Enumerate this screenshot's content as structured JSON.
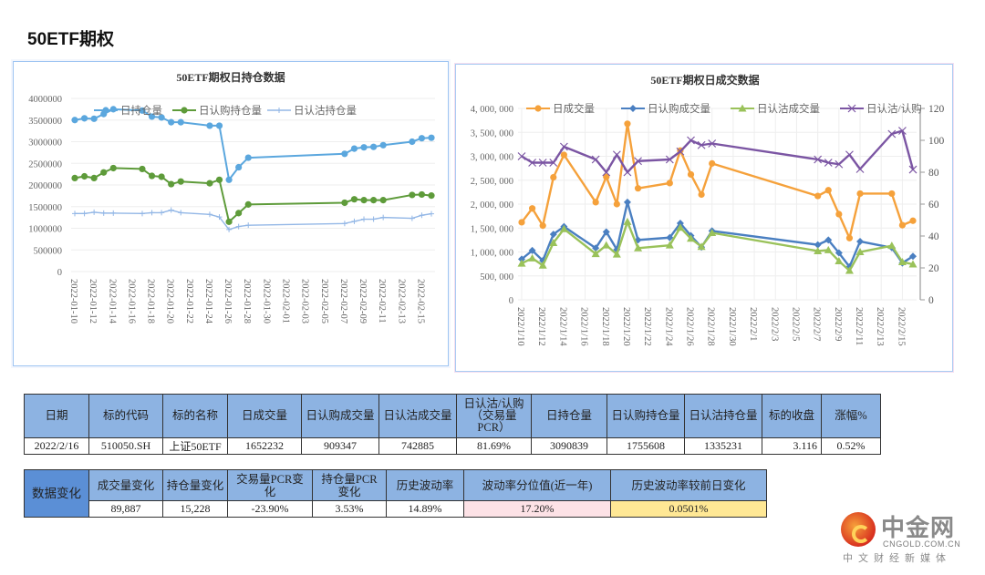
{
  "page": {
    "title": "50ETF期权"
  },
  "chart_data": [
    {
      "type": "line",
      "title": "50ETF期权日持仓数据",
      "xlabel": "",
      "ylabel": "",
      "ylim": [
        0,
        4000000
      ],
      "yticks": [
        "4000000",
        "3500000",
        "3000000",
        "2500000",
        "2000000",
        "1500000",
        "1000000",
        "500000",
        "0"
      ],
      "ytick_values": [
        4000000,
        3500000,
        3000000,
        2500000,
        2000000,
        1500000,
        1000000,
        500000,
        0
      ],
      "xlim": [
        "2022-01-10",
        "2022-02-16"
      ],
      "xtick_labels": [
        "2022-01-10",
        "2022-01-12",
        "2022-01-14",
        "2022-01-16",
        "2022-01-18",
        "2022-01-20",
        "2022-01-22",
        "2022-01-24",
        "2022-01-26",
        "2022-01-28",
        "2022-01-30",
        "2022-02-01",
        "2022-02-03",
        "2022-02-05",
        "2022-02-07",
        "2022-02-09",
        "2022-02-11",
        "2022-02-13",
        "2022-02-15"
      ],
      "grid": true,
      "legend": "top-center",
      "x": [
        "2022-01-10",
        "2022-01-11",
        "2022-01-12",
        "2022-01-13",
        "2022-01-14",
        "2022-01-17",
        "2022-01-18",
        "2022-01-19",
        "2022-01-20",
        "2022-01-21",
        "2022-01-24",
        "2022-01-25",
        "2022-01-26",
        "2022-01-27",
        "2022-01-28",
        "2022-02-07",
        "2022-02-08",
        "2022-02-09",
        "2022-02-10",
        "2022-02-11",
        "2022-02-14",
        "2022-02-15",
        "2022-02-16"
      ],
      "series": [
        {
          "name": "日持仓量",
          "color": "#5ba7de",
          "marker": "circle",
          "values": [
            3500000,
            3540000,
            3530000,
            3640000,
            3750000,
            3720000,
            3580000,
            3560000,
            3450000,
            3450000,
            3370000,
            3370000,
            2120000,
            2410000,
            2630000,
            2720000,
            2840000,
            2870000,
            2880000,
            2920000,
            3000000,
            3080000,
            3090839
          ]
        },
        {
          "name": "日认购持仓量",
          "color": "#5e9b3a",
          "marker": "circle",
          "values": [
            2160000,
            2200000,
            2160000,
            2290000,
            2390000,
            2370000,
            2210000,
            2190000,
            2020000,
            2080000,
            2040000,
            2120000,
            1150000,
            1350000,
            1550000,
            1590000,
            1670000,
            1650000,
            1650000,
            1650000,
            1770000,
            1780000,
            1755608
          ]
        },
        {
          "name": "日认沽持仓量",
          "color": "#93b7e6",
          "marker": "plus",
          "values": [
            1340000,
            1340000,
            1370000,
            1350000,
            1350000,
            1340000,
            1360000,
            1360000,
            1420000,
            1360000,
            1320000,
            1260000,
            970000,
            1040000,
            1070000,
            1110000,
            1160000,
            1210000,
            1210000,
            1250000,
            1230000,
            1300000,
            1335231
          ]
        }
      ]
    },
    {
      "type": "line",
      "title": "50ETF期权日成交数据",
      "xlabel": "",
      "ylabel": "",
      "y2label": "",
      "ylim": [
        0,
        4000000
      ],
      "y2lim": [
        0,
        120
      ],
      "yticks": [
        "4, 000, 000",
        "3, 500, 000",
        "3, 000, 000",
        "2, 500, 000",
        "2, 000, 000",
        "1, 500, 000",
        "1, 000, 000",
        "500, 000",
        "0"
      ],
      "ytick_values": [
        4000000,
        3500000,
        3000000,
        2500000,
        2000000,
        1500000,
        1000000,
        500000,
        0
      ],
      "y2ticks": [
        "120",
        "100",
        "80",
        "60",
        "40",
        "20",
        "0"
      ],
      "y2tick_values": [
        120,
        100,
        80,
        60,
        40,
        20,
        0
      ],
      "xlim": [
        "2022-01-10",
        "2022-02-16"
      ],
      "xtick_labels": [
        "2022/1/10",
        "2022/1/12",
        "2022/1/14",
        "2022/1/16",
        "2022/1/18",
        "2022/1/20",
        "2022/1/22",
        "2022/1/24",
        "2022/1/26",
        "2022/1/28",
        "2022/1/30",
        "2022/2/1",
        "2022/2/3",
        "2022/2/5",
        "2022/2/7",
        "2022/2/9",
        "2022/2/11",
        "2022/2/13",
        "2022/2/15"
      ],
      "grid": true,
      "legend": "top",
      "x": [
        "2022-01-10",
        "2022-01-11",
        "2022-01-12",
        "2022-01-13",
        "2022-01-14",
        "2022-01-17",
        "2022-01-18",
        "2022-01-19",
        "2022-01-20",
        "2022-01-21",
        "2022-01-24",
        "2022-01-25",
        "2022-01-26",
        "2022-01-27",
        "2022-01-28",
        "2022-02-07",
        "2022-02-08",
        "2022-02-09",
        "2022-02-10",
        "2022-02-11",
        "2022-02-14",
        "2022-02-15",
        "2022-02-16"
      ],
      "series": [
        {
          "name": "日成交量",
          "axis": "left",
          "color": "#f5a13b",
          "marker": "circle",
          "values": [
            1620000,
            1910000,
            1550000,
            2560000,
            3030000,
            2040000,
            2570000,
            2000000,
            3680000,
            2330000,
            2440000,
            3120000,
            2620000,
            2200000,
            2850000,
            2170000,
            2290000,
            1790000,
            1290000,
            2220000,
            2220000,
            1560000,
            1652232
          ]
        },
        {
          "name": "日认购成交量",
          "axis": "left",
          "color": "#4a7fc1",
          "marker": "diamond",
          "values": [
            850000,
            1030000,
            820000,
            1370000,
            1530000,
            1080000,
            1420000,
            1050000,
            2040000,
            1250000,
            1300000,
            1600000,
            1340000,
            1100000,
            1440000,
            1150000,
            1250000,
            980000,
            690000,
            1220000,
            1090000,
            770000,
            909347
          ]
        },
        {
          "name": "日认沽成交量",
          "axis": "left",
          "color": "#9ac25a",
          "marker": "triangle",
          "values": [
            760000,
            870000,
            720000,
            1190000,
            1480000,
            960000,
            1140000,
            950000,
            1630000,
            1080000,
            1140000,
            1510000,
            1280000,
            1110000,
            1400000,
            1020000,
            1040000,
            810000,
            610000,
            1000000,
            1130000,
            790000,
            742885
          ]
        },
        {
          "name": "日认沽/认购",
          "axis": "right",
          "color": "#7b55a3",
          "marker": "x",
          "values": [
            90,
            86,
            86,
            86,
            96,
            88,
            80,
            91,
            80,
            87,
            88,
            93,
            100,
            97,
            98,
            88,
            86,
            85,
            91,
            82,
            104,
            106,
            81.69
          ]
        }
      ]
    }
  ],
  "table1": {
    "headers": [
      "日期",
      "标的代码",
      "标的名称",
      "日成交量",
      "日认购成交量",
      "日认沽成交量",
      "日认沽/认购（交易量PCR）",
      "日持仓量",
      "日认购持仓量",
      "日认沽持仓量",
      "标的收盘",
      "涨幅%"
    ],
    "row": [
      "2022/2/16",
      "510050.SH",
      "上证50ETF",
      "1652232",
      "909347",
      "742885",
      "81.69%",
      "3090839",
      "1755608",
      "1335231",
      "3.116",
      "0.52%"
    ]
  },
  "table2": {
    "row_header": "数据变化",
    "headers": [
      "成交量变化",
      "持仓量变化",
      "交易量PCR变化",
      "持仓量PCR变化",
      "历史波动率",
      "波动率分位值(近一年)",
      "历史波动率较前日变化"
    ],
    "row": [
      "89,887",
      "15,228",
      "-23.90%",
      "3.53%",
      "14.89%",
      "17.20%",
      "0.0501%"
    ]
  },
  "logo": {
    "cn": "中金网",
    "en": "CNGOLD.COM.CN",
    "sub": "中文财经新媒体"
  }
}
